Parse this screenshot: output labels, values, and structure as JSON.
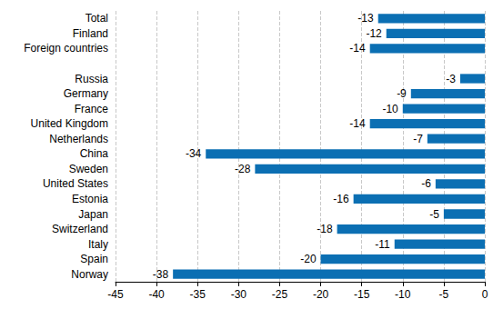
{
  "chart_data": {
    "type": "bar",
    "orientation": "horizontal",
    "categories": [
      "Total",
      "Finland",
      "Foreign countries",
      null,
      "Russia",
      "Germany",
      "France",
      "United Kingdom",
      "Netherlands",
      "China",
      "Sweden",
      "United States",
      "Estonia",
      "Japan",
      "Switzerland",
      "Italy",
      "Spain",
      "Norway"
    ],
    "values": [
      -13,
      -12,
      -14,
      null,
      -3,
      -9,
      -10,
      -14,
      -7,
      -34,
      -28,
      -6,
      -16,
      -5,
      -18,
      -11,
      -20,
      -38
    ],
    "color": "#0b6fb3",
    "xlim": [
      -45,
      0
    ],
    "xticks": [
      -45,
      -40,
      -35,
      -30,
      -25,
      -20,
      -15,
      -10,
      -5,
      0
    ],
    "grid": true,
    "data_labels": true
  }
}
